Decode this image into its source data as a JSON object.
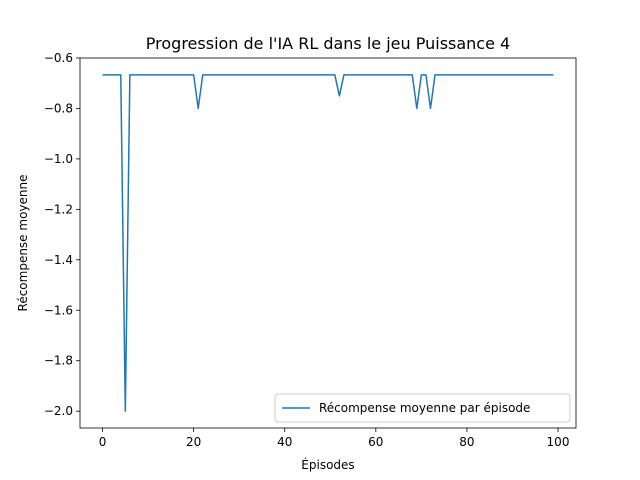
{
  "chart_data": {
    "type": "line",
    "title": "Progression de l'IA RL dans le jeu Puissance 4",
    "xlabel": "Épisodes",
    "ylabel": "Récompense moyenne",
    "xlim": [
      -4.95,
      103.95
    ],
    "ylim": [
      -2.0667,
      -0.6
    ],
    "x_ticks": [
      0,
      20,
      40,
      60,
      80,
      100
    ],
    "x_tick_labels": [
      "0",
      "20",
      "40",
      "60",
      "80",
      "100"
    ],
    "y_ticks": [
      -0.6,
      -0.8,
      -1.0,
      -1.2,
      -1.4,
      -1.6,
      -1.8,
      -2.0
    ],
    "y_tick_labels": [
      "−0.6",
      "−0.8",
      "−1.0",
      "−1.2",
      "−1.4",
      "−1.6",
      "−1.8",
      "−2.0"
    ],
    "grid": false,
    "legend_position": "lower right",
    "series": [
      {
        "name": "Récompense moyenne par épisode",
        "color": "#1f77b4",
        "x": [
          0,
          1,
          2,
          3,
          4,
          5,
          6,
          7,
          8,
          9,
          10,
          11,
          12,
          13,
          14,
          15,
          16,
          17,
          18,
          19,
          20,
          21,
          22,
          23,
          24,
          25,
          26,
          27,
          28,
          29,
          30,
          31,
          32,
          33,
          34,
          35,
          36,
          37,
          38,
          39,
          40,
          41,
          42,
          43,
          44,
          45,
          46,
          47,
          48,
          49,
          50,
          51,
          52,
          53,
          54,
          55,
          56,
          57,
          58,
          59,
          60,
          61,
          62,
          63,
          64,
          65,
          66,
          67,
          68,
          69,
          70,
          71,
          72,
          73,
          74,
          75,
          76,
          77,
          78,
          79,
          80,
          81,
          82,
          83,
          84,
          85,
          86,
          87,
          88,
          89,
          90,
          91,
          92,
          93,
          94,
          95,
          96,
          97,
          98,
          99
        ],
        "y": [
          -0.6667,
          -0.6667,
          -0.6667,
          -0.6667,
          -0.6667,
          -2.0,
          -0.6667,
          -0.6667,
          -0.6667,
          -0.6667,
          -0.6667,
          -0.6667,
          -0.6667,
          -0.6667,
          -0.6667,
          -0.6667,
          -0.6667,
          -0.6667,
          -0.6667,
          -0.6667,
          -0.6667,
          -0.8,
          -0.6667,
          -0.6667,
          -0.6667,
          -0.6667,
          -0.6667,
          -0.6667,
          -0.6667,
          -0.6667,
          -0.6667,
          -0.6667,
          -0.6667,
          -0.6667,
          -0.6667,
          -0.6667,
          -0.6667,
          -0.6667,
          -0.6667,
          -0.6667,
          -0.6667,
          -0.6667,
          -0.6667,
          -0.6667,
          -0.6667,
          -0.6667,
          -0.6667,
          -0.6667,
          -0.6667,
          -0.6667,
          -0.6667,
          -0.6667,
          -0.75,
          -0.6667,
          -0.6667,
          -0.6667,
          -0.6667,
          -0.6667,
          -0.6667,
          -0.6667,
          -0.6667,
          -0.6667,
          -0.6667,
          -0.6667,
          -0.6667,
          -0.6667,
          -0.6667,
          -0.6667,
          -0.6667,
          -0.8,
          -0.6667,
          -0.6667,
          -0.8,
          -0.6667,
          -0.6667,
          -0.6667,
          -0.6667,
          -0.6667,
          -0.6667,
          -0.6667,
          -0.6667,
          -0.6667,
          -0.6667,
          -0.6667,
          -0.6667,
          -0.6667,
          -0.6667,
          -0.6667,
          -0.6667,
          -0.6667,
          -0.6667,
          -0.6667,
          -0.6667,
          -0.6667,
          -0.6667,
          -0.6667,
          -0.6667,
          -0.6667,
          -0.6667,
          -0.6667
        ]
      }
    ]
  }
}
